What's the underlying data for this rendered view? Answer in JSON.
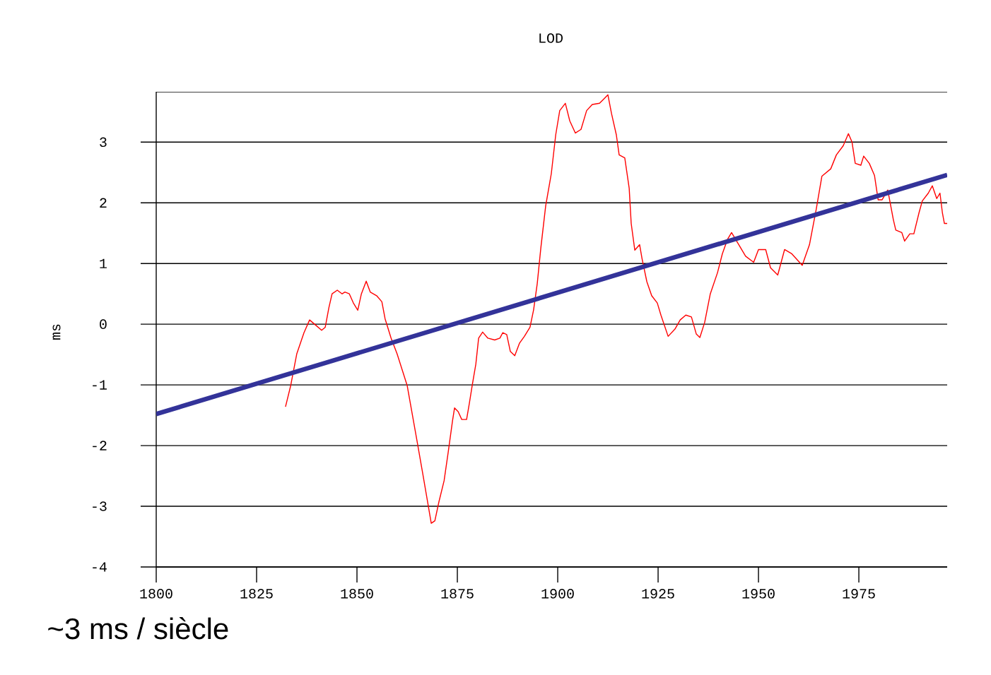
{
  "chart_data": {
    "type": "line",
    "title": "LOD",
    "ylabel": "ms",
    "annotations": [
      "~3 ms / siècle"
    ],
    "x": [
      1832.2,
      1833.5,
      1835,
      1836.8,
      1838.2,
      1839.8,
      1841.2,
      1842.1,
      1843,
      1843.8,
      1845.1,
      1846.3,
      1847,
      1848.1,
      1849.1,
      1850.2,
      1851.1,
      1852.3,
      1853.3,
      1854.9,
      1856.2,
      1857,
      1858.5,
      1860,
      1861.4,
      1862.5,
      1863.6,
      1865,
      1866.4,
      1867.6,
      1868.5,
      1869.4,
      1870.4,
      1871.7,
      1872.7,
      1873.8,
      1874.3,
      1875.2,
      1876.1,
      1877.3,
      1878,
      1878.7,
      1879.6,
      1880.3,
      1881.3,
      1882.6,
      1884.3,
      1885.6,
      1886.3,
      1887.3,
      1888.2,
      1889.3,
      1890.5,
      1891.7,
      1893.1,
      1894,
      1894.9,
      1895.8,
      1897,
      1898.4,
      1899.5,
      1900.5,
      1901.9,
      1903,
      1904.4,
      1905.8,
      1907.2,
      1908.6,
      1910.4,
      1911.3,
      1912.5,
      1913.4,
      1914.6,
      1915.3,
      1916.7,
      1917.8,
      1918.3,
      1919.2,
      1920.4,
      1921,
      1922.2,
      1923.4,
      1924.8,
      1925.7,
      1927.5,
      1929.2,
      1930.5,
      1931.9,
      1933.3,
      1934.5,
      1935.4,
      1936.6,
      1938,
      1939.8,
      1941,
      1942.3,
      1943.3,
      1945.1,
      1946.8,
      1948.8,
      1950,
      1951.8,
      1953,
      1954.8,
      1956.5,
      1958.3,
      1960.9,
      1962.7,
      1964.4,
      1965.8,
      1968,
      1969.4,
      1971.1,
      1972.4,
      1973.3,
      1974.1,
      1975.5,
      1976.2,
      1977.6,
      1978.9,
      1979.8,
      1980.8,
      1982.2,
      1983.6,
      1984.2,
      1985.7,
      1986.4,
      1987.7,
      1988.7,
      1990,
      1990.8,
      1992.3,
      1993.3,
      1994.4,
      1995.2,
      1995.8,
      1996.3,
      1997
    ],
    "series": [
      {
        "color": "#ff0000",
        "values": [
          -1.36,
          -1.01,
          -0.49,
          -0.14,
          0.07,
          -0.02,
          -0.1,
          -0.05,
          0.27,
          0.5,
          0.56,
          0.5,
          0.53,
          0.5,
          0.35,
          0.23,
          0.5,
          0.71,
          0.53,
          0.47,
          0.37,
          0.09,
          -0.23,
          -0.49,
          -0.78,
          -1.01,
          -1.42,
          -1.94,
          -2.47,
          -2.93,
          -3.28,
          -3.24,
          -2.93,
          -2.58,
          -2.12,
          -1.59,
          -1.38,
          -1.44,
          -1.57,
          -1.57,
          -1.3,
          -1.01,
          -0.66,
          -0.23,
          -0.13,
          -0.23,
          -0.26,
          -0.23,
          -0.14,
          -0.17,
          -0.45,
          -0.52,
          -0.31,
          -0.2,
          -0.05,
          0.24,
          0.67,
          1.26,
          1.95,
          2.48,
          3.12,
          3.52,
          3.64,
          3.35,
          3.15,
          3.21,
          3.52,
          3.62,
          3.64,
          3.7,
          3.78,
          3.47,
          3.12,
          2.79,
          2.74,
          2.24,
          1.66,
          1.22,
          1.31,
          1.08,
          0.7,
          0.47,
          0.35,
          0.15,
          -0.2,
          -0.08,
          0.07,
          0.15,
          0.12,
          -0.16,
          -0.22,
          0.03,
          0.5,
          0.85,
          1.16,
          1.4,
          1.51,
          1.31,
          1.12,
          1.02,
          1.23,
          1.23,
          0.93,
          0.81,
          1.23,
          1.16,
          0.97,
          1.31,
          1.9,
          2.44,
          2.56,
          2.79,
          2.94,
          3.14,
          3.0,
          2.65,
          2.62,
          2.77,
          2.65,
          2.45,
          2.05,
          2.05,
          2.21,
          1.72,
          1.55,
          1.51,
          1.37,
          1.49,
          1.49,
          1.84,
          2.03,
          2.16,
          2.28,
          2.07,
          2.16,
          1.84,
          1.66,
          1.66
        ]
      },
      {
        "type": "line",
        "color": "#333399",
        "x": [
          1800,
          1997
        ],
        "values": [
          -1.48,
          2.46
        ]
      }
    ],
    "xlim": [
      1800,
      1997
    ],
    "ylim": [
      -4,
      3.83
    ],
    "xticks": [
      1800,
      1825,
      1850,
      1875,
      1900,
      1925,
      1950,
      1975
    ],
    "yticks": [
      -4,
      -3,
      -2,
      -1,
      0,
      1,
      2,
      3
    ],
    "grid": "y"
  }
}
